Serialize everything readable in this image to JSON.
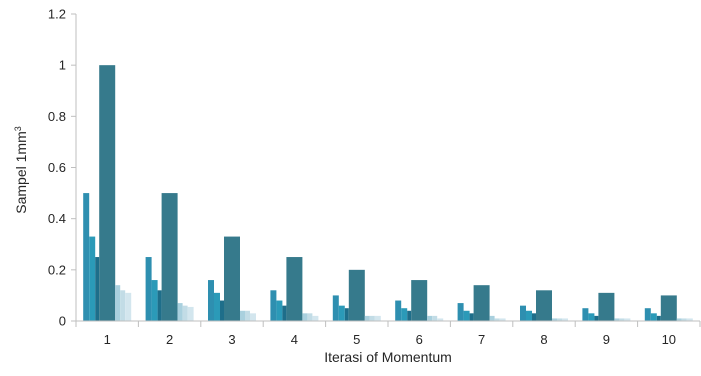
{
  "chart_data": {
    "type": "bar",
    "title": "",
    "xlabel": "Iterasi of Momentum",
    "ylabel": "Sampel 1mm",
    "ylabel_superscript": "3",
    "ylim": [
      0,
      1.2
    ],
    "yticks": [
      "0",
      "0.2",
      "0.4",
      "0.6",
      "0.8",
      "1",
      "1.2"
    ],
    "grid": false,
    "legend": "none",
    "categories": [
      "1",
      "2",
      "3",
      "4",
      "5",
      "6",
      "7",
      "8",
      "9",
      "10"
    ],
    "series": [
      {
        "color": "#2e8fb0",
        "values": [
          0.5,
          0.25,
          0.16,
          0.12,
          0.1,
          0.08,
          0.07,
          0.06,
          0.05,
          0.05
        ]
      },
      {
        "color": "#2b9ab8",
        "values": [
          0.33,
          0.16,
          0.11,
          0.08,
          0.06,
          0.05,
          0.04,
          0.04,
          0.03,
          0.03
        ]
      },
      {
        "color": "#1e6e8a",
        "values": [
          0.25,
          0.12,
          0.08,
          0.06,
          0.05,
          0.04,
          0.03,
          0.03,
          0.02,
          0.02
        ]
      },
      {
        "color": "#367a8c",
        "values": [
          1.0,
          0.5,
          0.33,
          0.25,
          0.2,
          0.16,
          0.14,
          0.12,
          0.11,
          0.1
        ]
      },
      {
        "color": "#a9d0de",
        "values": [
          0.14,
          0.07,
          0.04,
          0.03,
          0.02,
          0.02,
          0.02,
          0.01,
          0.01,
          0.01
        ]
      },
      {
        "color": "#c2dce6",
        "values": [
          0.12,
          0.06,
          0.04,
          0.03,
          0.02,
          0.02,
          0.01,
          0.01,
          0.01,
          0.01
        ]
      },
      {
        "color": "#d3e6ee",
        "values": [
          0.11,
          0.055,
          0.03,
          0.02,
          0.02,
          0.01,
          0.01,
          0.01,
          0.01,
          0.01
        ]
      }
    ]
  }
}
